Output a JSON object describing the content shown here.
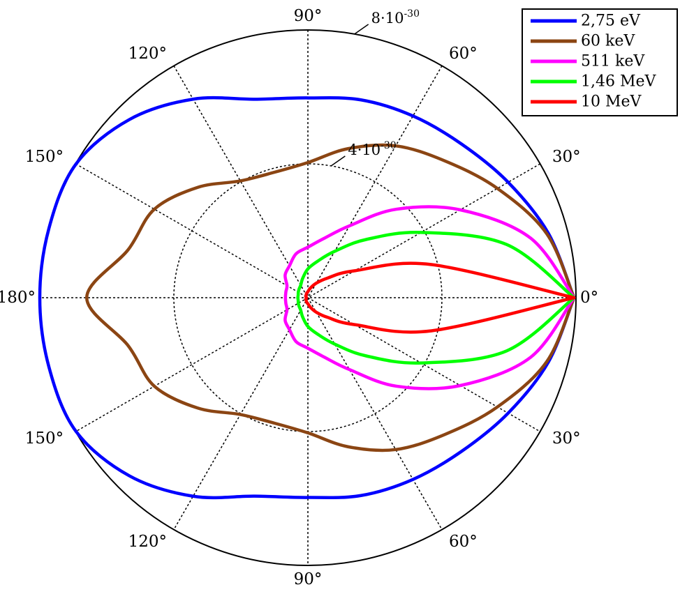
{
  "chart_data": {
    "type": "polar-line",
    "angle_unit": "deg",
    "angle_ticks": [
      {
        "angle": 0,
        "label": "0°"
      },
      {
        "angle": 30,
        "label": "30°"
      },
      {
        "angle": 60,
        "label": "60°"
      },
      {
        "angle": 90,
        "label": "90°"
      },
      {
        "angle": 120,
        "label": "120°"
      },
      {
        "angle": 150,
        "label": "150°"
      },
      {
        "angle": 180,
        "label": "180°"
      },
      {
        "angle": -150,
        "label": "150°"
      },
      {
        "angle": -120,
        "label": "120°"
      },
      {
        "angle": -90,
        "label": "90°"
      },
      {
        "angle": -60,
        "label": "60°"
      },
      {
        "angle": -30,
        "label": "30°"
      }
    ],
    "radial_range": [
      0,
      8e-30
    ],
    "radial_ticks": [
      {
        "value": 4e-30,
        "label_base": "4·10",
        "label_exp": "-30"
      },
      {
        "value": 8e-30,
        "label_base": "8·10",
        "label_exp": "-30"
      }
    ],
    "grid": true,
    "legend": "top-right",
    "angles": [
      0,
      15,
      30,
      45,
      60,
      75,
      90,
      105,
      120,
      135,
      150,
      165,
      180
    ],
    "series": [
      {
        "name": "2,75 eV",
        "color": "#0000ff",
        "r": [
          7.94e-30,
          7.43e-30,
          6.9e-30,
          6.49e-30,
          6.27e-30,
          6.12e-30,
          5.97e-30,
          6.14e-30,
          6.85e-30,
          7.53e-30,
          7.99e-30,
          8e-30,
          8e-30
        ]
      },
      {
        "name": "60 keV",
        "color": "#8b4513",
        "r": [
          7.94e-30,
          7.38e-30,
          6.53e-30,
          5.78e-30,
          5.24e-30,
          4.61e-30,
          4.04e-30,
          3.88e-30,
          4.03e-30,
          4.66e-30,
          5.29e-30,
          5.55e-30,
          6.6e-30
        ]
      },
      {
        "name": "511 keV",
        "color": "#ff00ff",
        "r": [
          7.94e-30,
          6.88e-30,
          5.25e-30,
          3.74e-30,
          2.48e-30,
          1.83e-30,
          1.51e-30,
          1.36e-30,
          1.1e-30,
          9.6e-31,
          7.2e-31,
          6.8e-31,
          6.7e-31
        ]
      },
      {
        "name": "1,46 MeV",
        "color": "#00ff00",
        "r": [
          7.94e-30,
          6.14e-30,
          3.9e-30,
          2.46e-30,
          1.6e-30,
          1.13e-30,
          8.6e-31,
          6e-31,
          4.3e-31,
          3.7e-31,
          3.3e-31,
          3e-31,
          3e-31
        ]
      },
      {
        "name": "10 MeV",
        "color": "#ff0000",
        "r": [
          7.94e-30,
          3.82e-30,
          1.61e-30,
          8.3e-31,
          5e-31,
          3e-31,
          1.8e-31,
          1.4e-31,
          1e-31,
          8e-32,
          7e-32,
          5e-32,
          4e-32
        ]
      }
    ]
  }
}
